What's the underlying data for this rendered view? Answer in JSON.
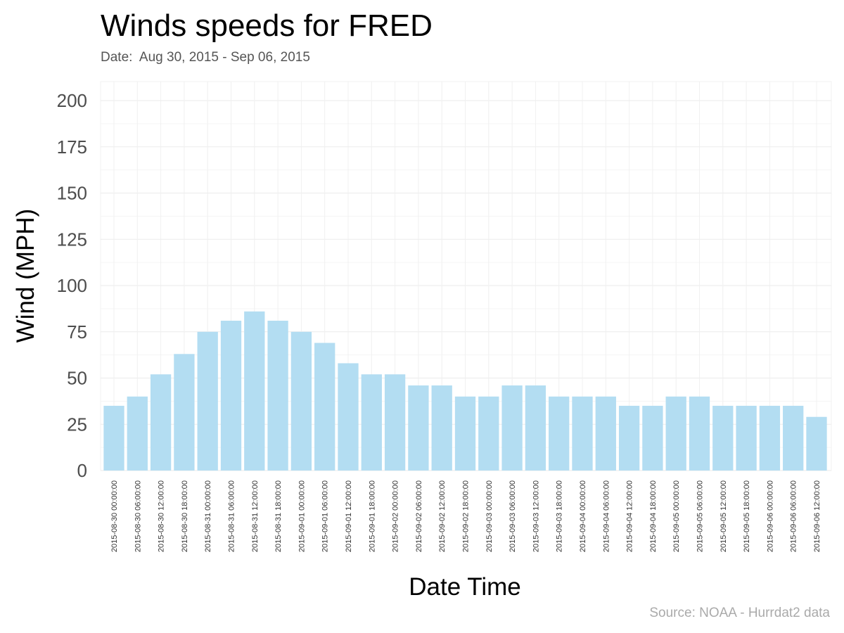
{
  "title": "Winds speeds for FRED",
  "subtitle": "Date:  Aug 30, 2015 - Sep 06, 2015",
  "source": "Source: NOAA - Hurrdat2 data",
  "chart_data": {
    "type": "bar",
    "title": "Winds speeds for FRED",
    "xlabel": "Date Time",
    "ylabel": "Wind (MPH)",
    "ylim": [
      0,
      200
    ],
    "yticks": [
      0,
      25,
      50,
      75,
      100,
      125,
      150,
      175,
      200
    ],
    "grid": true,
    "bar_color": "#b3ddf2",
    "categories": [
      "2015-08-30 00:00:00",
      "2015-08-30 06:00:00",
      "2015-08-30 12:00:00",
      "2015-08-30 18:00:00",
      "2015-08-31 00:00:00",
      "2015-08-31 06:00:00",
      "2015-08-31 12:00:00",
      "2015-08-31 18:00:00",
      "2015-09-01 00:00:00",
      "2015-09-01 06:00:00",
      "2015-09-01 12:00:00",
      "2015-09-01 18:00:00",
      "2015-09-02 00:00:00",
      "2015-09-02 06:00:00",
      "2015-09-02 12:00:00",
      "2015-09-02 18:00:00",
      "2015-09-03 00:00:00",
      "2015-09-03 06:00:00",
      "2015-09-03 12:00:00",
      "2015-09-03 18:00:00",
      "2015-09-04 00:00:00",
      "2015-09-04 06:00:00",
      "2015-09-04 12:00:00",
      "2015-09-04 18:00:00",
      "2015-09-05 00:00:00",
      "2015-09-05 06:00:00",
      "2015-09-05 12:00:00",
      "2015-09-05 18:00:00",
      "2015-09-06 00:00:00",
      "2015-09-06 06:00:00",
      "2015-09-06 12:00:00"
    ],
    "values": [
      35,
      40,
      52,
      63,
      75,
      81,
      86,
      81,
      75,
      69,
      58,
      52,
      52,
      46,
      46,
      40,
      40,
      46,
      46,
      40,
      40,
      40,
      35,
      35,
      40,
      40,
      35,
      35,
      35,
      35,
      29
    ]
  }
}
